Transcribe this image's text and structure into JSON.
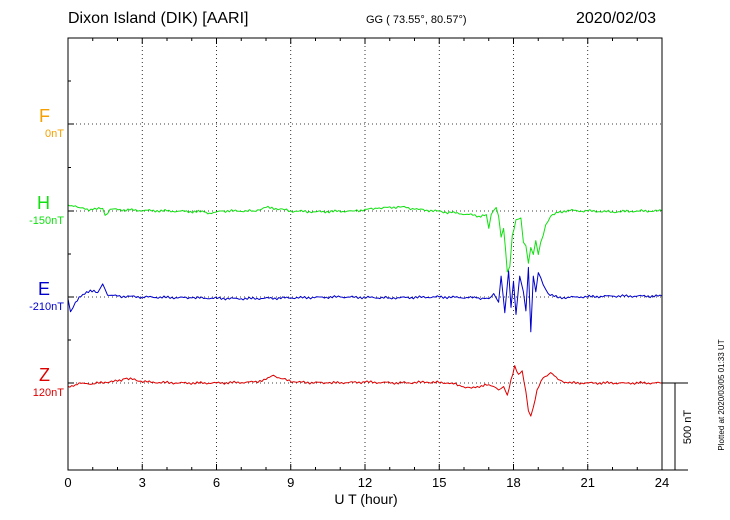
{
  "header": {
    "station": "Dixon Island (DIK)  [AARI]",
    "coords": "GG ( 73.55°,  80.57°)",
    "date": "2020/02/03"
  },
  "chart_data": {
    "type": "line",
    "title": "Dixon Island (DIK)  [AARI]",
    "xlabel": "U T (hour)",
    "ylabel": "",
    "x_ticks": [
      "0",
      "3",
      "6",
      "9",
      "12",
      "15",
      "18",
      "21",
      "24"
    ],
    "xlim": [
      0,
      24
    ],
    "grid": true,
    "scale_bar": "500 nT",
    "scale_bar_nT": 500,
    "plotted_note": "Plotted at 2020/03/05 01:33 UT",
    "series": [
      {
        "name": "F",
        "baseline_label": "0nT",
        "baseline_nT": 0,
        "color": "#f5a000",
        "x": [],
        "y": []
      },
      {
        "name": "H",
        "baseline_label": "-150nT",
        "baseline_nT": -150,
        "color": "#10e010",
        "x": [
          0,
          0.3,
          0.5,
          0.7,
          1.0,
          1.4,
          1.5,
          1.7,
          2.5,
          4.0,
          5.5,
          5.8,
          6.2,
          7.5,
          8.0,
          8.4,
          9.0,
          10.0,
          11.5,
          12.5,
          13.5,
          14.0,
          14.5,
          15.5,
          16.2,
          16.6,
          16.9,
          17.0,
          17.1,
          17.3,
          17.4,
          17.5,
          17.6,
          17.75,
          17.85,
          17.95,
          18.1,
          18.3,
          18.4,
          18.5,
          18.6,
          18.7,
          18.8,
          18.9,
          19.0,
          19.1,
          19.2,
          19.3,
          19.5,
          19.8,
          20.2,
          20.6,
          21.0,
          22.0,
          23.0,
          24.0
        ],
        "y": [
          35,
          30,
          18,
          10,
          8,
          15,
          -25,
          10,
          5,
          0,
          -5,
          -15,
          0,
          0,
          20,
          15,
          0,
          -5,
          0,
          15,
          25,
          10,
          5,
          -10,
          -20,
          -30,
          -20,
          -100,
          -20,
          20,
          -30,
          -150,
          -100,
          -350,
          -320,
          -140,
          -50,
          -40,
          -180,
          -200,
          -300,
          -210,
          -250,
          -170,
          -250,
          -180,
          -140,
          -80,
          -30,
          -10,
          5,
          0,
          0,
          -5,
          0,
          0
        ]
      },
      {
        "name": "E",
        "baseline_label": "-210nT",
        "baseline_nT": -210,
        "color": "#0000cc",
        "x": [
          0,
          0.1,
          0.3,
          0.6,
          0.9,
          1.2,
          1.4,
          1.6,
          2.0,
          3.0,
          5.0,
          7.0,
          9.0,
          11.0,
          13.0,
          15.0,
          16.5,
          17.0,
          17.2,
          17.4,
          17.5,
          17.65,
          17.8,
          17.9,
          18.0,
          18.1,
          18.25,
          18.4,
          18.5,
          18.6,
          18.7,
          18.8,
          18.9,
          19.0,
          19.2,
          19.4,
          19.8,
          20.5,
          22.0,
          24.0
        ],
        "y": [
          -10,
          -85,
          -30,
          15,
          40,
          25,
          75,
          10,
          5,
          0,
          -5,
          -10,
          -5,
          0,
          -5,
          0,
          -5,
          -10,
          20,
          -30,
          120,
          -90,
          150,
          -60,
          90,
          -100,
          120,
          30,
          -80,
          170,
          -200,
          120,
          30,
          140,
          70,
          20,
          -5,
          0,
          5,
          5
        ]
      },
      {
        "name": "Z",
        "baseline_label": "120nT",
        "baseline_nT": 120,
        "color": "#dd0000",
        "x": [
          0,
          0.3,
          0.6,
          1.0,
          1.5,
          2.0,
          2.3,
          2.6,
          3.2,
          4.5,
          6.0,
          7.5,
          8.0,
          8.3,
          8.6,
          9.2,
          10.5,
          12.0,
          13.5,
          14.5,
          15.5,
          15.9,
          16.3,
          16.7,
          17.0,
          17.2,
          17.4,
          17.6,
          17.75,
          17.9,
          18.05,
          18.2,
          18.35,
          18.5,
          18.6,
          18.7,
          18.8,
          18.95,
          19.2,
          19.5,
          19.8,
          20.2,
          21.0,
          22.5,
          24.0
        ],
        "y": [
          -20,
          -10,
          0,
          -5,
          5,
          10,
          25,
          20,
          5,
          0,
          0,
          5,
          20,
          45,
          25,
          5,
          0,
          5,
          0,
          5,
          0,
          -20,
          -30,
          -15,
          -10,
          -20,
          -40,
          -20,
          -70,
          20,
          100,
          50,
          70,
          -50,
          -160,
          -190,
          -140,
          -40,
          30,
          60,
          20,
          0,
          0,
          0,
          0
        ]
      }
    ]
  }
}
